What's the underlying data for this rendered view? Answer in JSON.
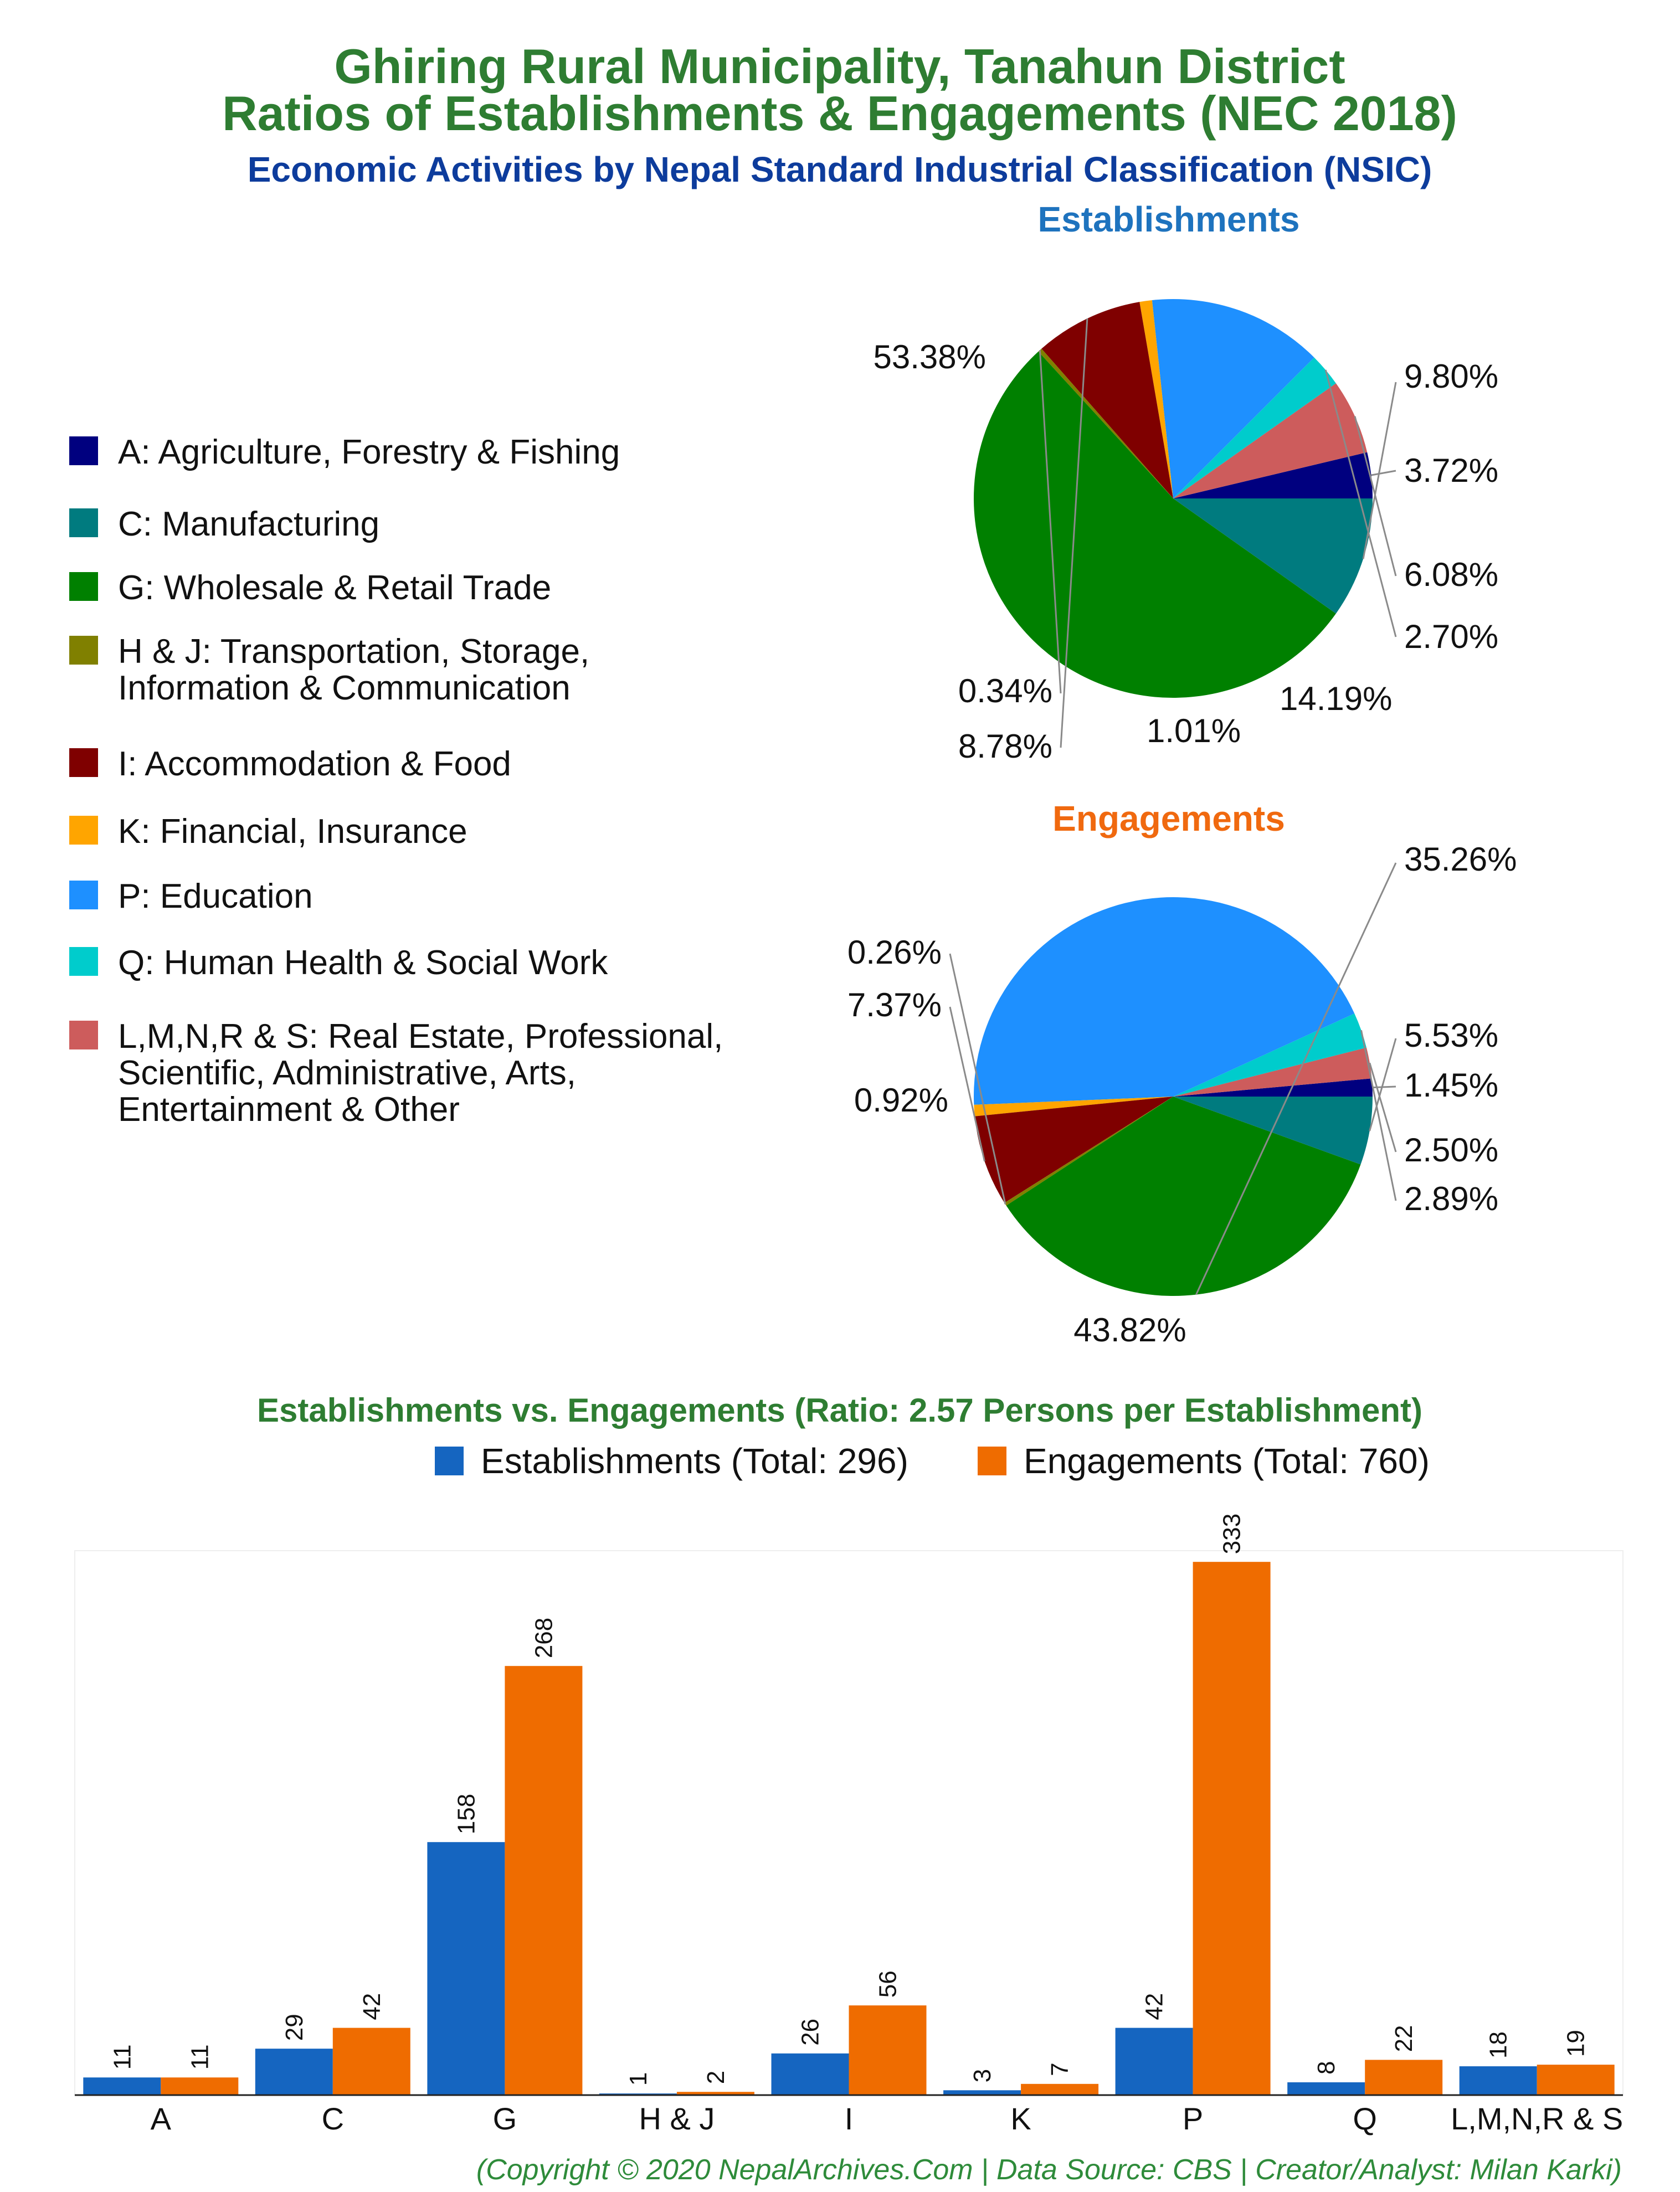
{
  "title_line1": "Ghiring Rural Municipality, Tanahun District",
  "title_line2": "Ratios of Establishments & Engagements (NEC 2018)",
  "subtitle": "Economic Activities by Nepal Standard Industrial Classification (NSIC)",
  "legend": [
    {
      "key": "A",
      "label": "A: Agriculture, Forestry & Fishing",
      "color": "#00007f"
    },
    {
      "key": "C",
      "label": "C: Manufacturing",
      "color": "#007b7f"
    },
    {
      "key": "G",
      "label": "G: Wholesale & Retail Trade",
      "color": "#008000"
    },
    {
      "key": "HJ",
      "label": [
        "H & J: Transportation, Storage,",
        "Information & Communication"
      ],
      "color": "#808000"
    },
    {
      "key": "I",
      "label": "I: Accommodation & Food",
      "color": "#7f0000"
    },
    {
      "key": "K",
      "label": "K: Financial, Insurance",
      "color": "#ffa500"
    },
    {
      "key": "P",
      "label": "P: Education",
      "color": "#1e90ff"
    },
    {
      "key": "Q",
      "label": "Q: Human Health & Social Work",
      "color": "#00cccc"
    },
    {
      "key": "LMNRS",
      "label": [
        "L,M,N,R & S: Real Estate, Professional,",
        "Scientific, Administrative, Arts,",
        "Entertainment & Other"
      ],
      "color": "#cd5c5c"
    }
  ],
  "chart_data": [
    {
      "type": "pie",
      "title": "Establishments",
      "slices": [
        {
          "key": "A",
          "value": 3.72,
          "label": "3.72%"
        },
        {
          "key": "LMNRS",
          "value": 6.08,
          "label": "6.08%"
        },
        {
          "key": "Q",
          "value": 2.7,
          "label": "2.70%"
        },
        {
          "key": "P",
          "value": 14.19,
          "label": "14.19%"
        },
        {
          "key": "K",
          "value": 1.01,
          "label": "1.01%"
        },
        {
          "key": "I",
          "value": 8.78,
          "label": "8.78%"
        },
        {
          "key": "HJ",
          "value": 0.34,
          "label": "0.34%"
        },
        {
          "key": "G",
          "value": 53.38,
          "label": "53.38%"
        },
        {
          "key": "C",
          "value": 9.8,
          "label": "9.80%"
        }
      ]
    },
    {
      "type": "pie",
      "title": "Engagements",
      "slices": [
        {
          "key": "A",
          "value": 1.45,
          "label": "1.45%"
        },
        {
          "key": "LMNRS",
          "value": 2.5,
          "label": "2.50%"
        },
        {
          "key": "Q",
          "value": 2.89,
          "label": "2.89%"
        },
        {
          "key": "P",
          "value": 43.82,
          "label": "43.82%"
        },
        {
          "key": "K",
          "value": 0.92,
          "label": "0.92%"
        },
        {
          "key": "I",
          "value": 7.37,
          "label": "7.37%"
        },
        {
          "key": "HJ",
          "value": 0.26,
          "label": "0.26%"
        },
        {
          "key": "G",
          "value": 35.26,
          "label": "35.26%"
        },
        {
          "key": "C",
          "value": 5.53,
          "label": "5.53%"
        }
      ]
    },
    {
      "type": "bar",
      "title": "Establishments vs. Engagements (Ratio: 2.57 Persons per Establishment)",
      "categories": [
        "A",
        "C",
        "G",
        "H & J",
        "I",
        "K",
        "P",
        "Q",
        "L,M,N,R & S"
      ],
      "series": [
        {
          "name": "Establishments (Total: 296)",
          "color": "#1565c0",
          "values": [
            11,
            29,
            158,
            1,
            26,
            3,
            42,
            8,
            18
          ]
        },
        {
          "name": "Engagements (Total: 760)",
          "color": "#ef6c00",
          "values": [
            11,
            42,
            268,
            2,
            56,
            7,
            333,
            22,
            19
          ]
        }
      ],
      "ylim": [
        0,
        340
      ],
      "grid": false,
      "legend_position": "top"
    }
  ],
  "footer": "(Copyright © 2020 NepalArchives.Com | Data Source: CBS | Creator/Analyst: Milan Karki)"
}
